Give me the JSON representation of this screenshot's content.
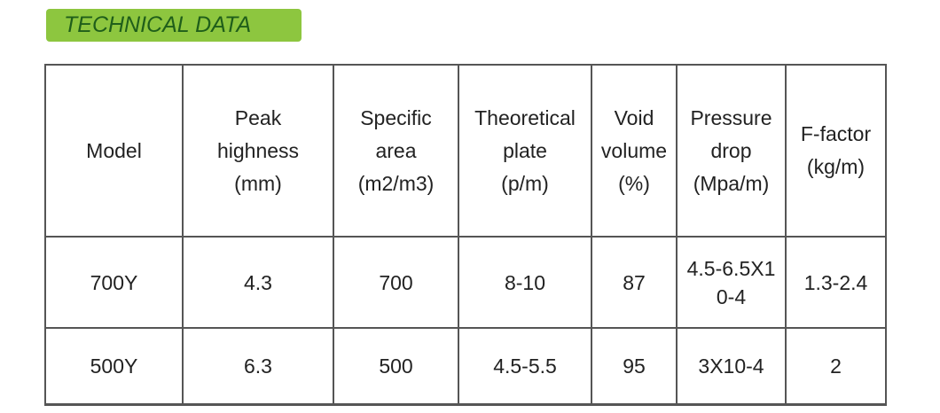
{
  "header": {
    "title": "TECHNICAL DATA"
  },
  "table": {
    "columns": [
      [
        "Model"
      ],
      [
        "Peak",
        "highness",
        "(mm)"
      ],
      [
        "Specific",
        "area",
        "(m2/m3)"
      ],
      [
        "Theoretical",
        "plate",
        "(p/m)"
      ],
      [
        "Void",
        "volume",
        "(%)"
      ],
      [
        "Pressure",
        "drop",
        "(Mpa/m)"
      ],
      [
        "F-factor",
        "(kg/m)"
      ]
    ],
    "rows": [
      [
        "700Y",
        "4.3",
        "700",
        "8-10",
        "87",
        "4.5-6.5X10-4",
        "1.3-2.4"
      ],
      [
        "500Y",
        "6.3",
        "500",
        "4.5-5.5",
        "95",
        "3X10-4",
        "2"
      ]
    ]
  }
}
